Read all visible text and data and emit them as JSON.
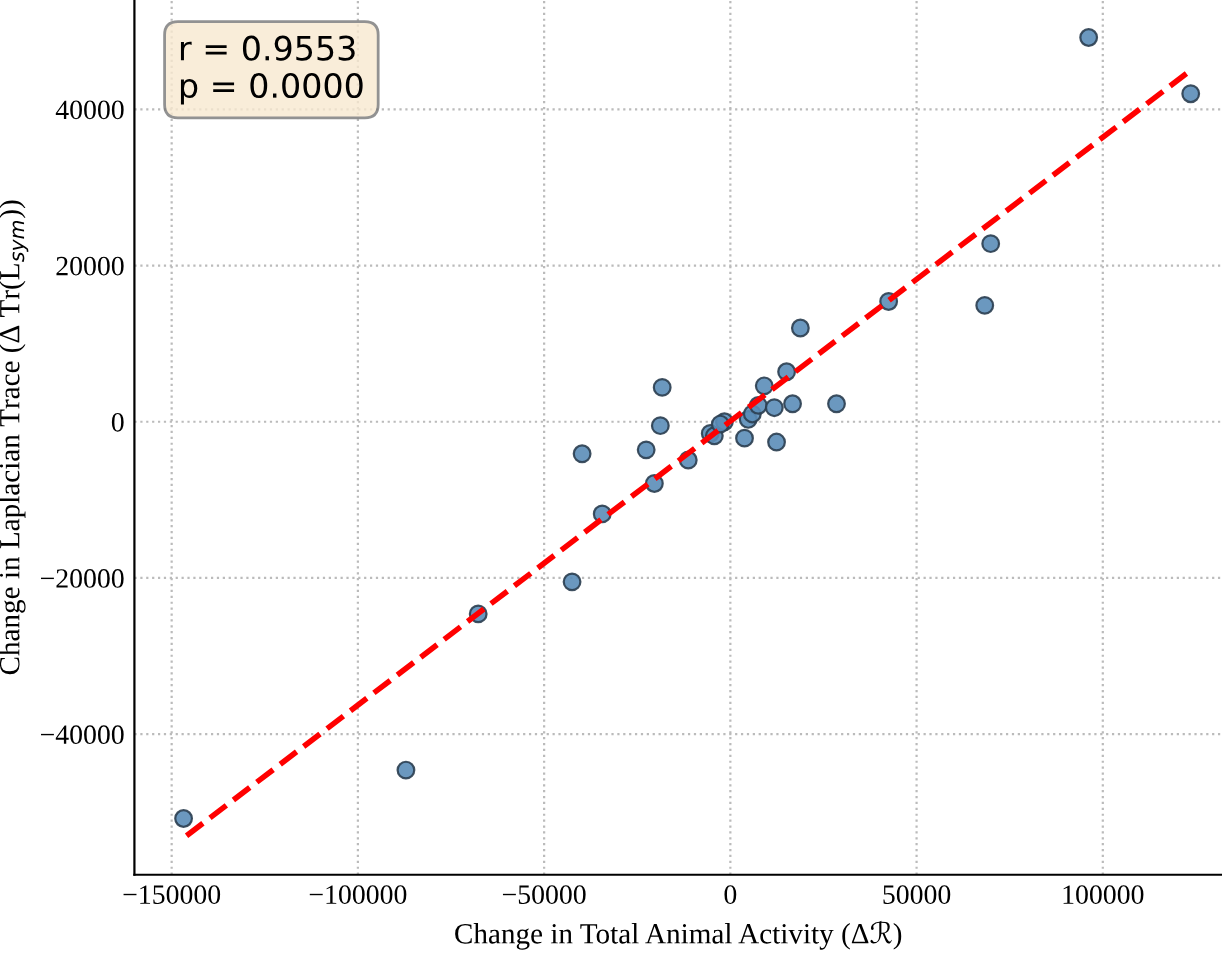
{
  "chart_data": {
    "type": "scatter",
    "xlabel": "Change in Total Animal Activity (Δℛ)",
    "ylabel": "Change in Laplacian Trace (Δ Tr(L$_{sym}$))",
    "annotations": [
      "r = 0.9553\np = 0.0000"
    ],
    "series": [
      {
        "color": "#5b8db8",
        "marker": "circle",
        "x": [
          -146800,
          -87100,
          -67700,
          -42500,
          -39800,
          -34400,
          -18300,
          -18800,
          -22600,
          -20400,
          -11300,
          -5400,
          -4300,
          -1600,
          -2700,
          3800,
          4800,
          5900,
          7500,
          9100,
          11800,
          12400,
          15100,
          16700,
          18800,
          28500,
          42500,
          68300,
          69900,
          96200,
          123600
        ],
        "values": [
          -50800,
          -44600,
          -24600,
          -20500,
          -4100,
          -11800,
          4400,
          -500,
          -3600,
          -7900,
          -4900,
          -1500,
          -1800,
          0,
          -300,
          -2100,
          300,
          1000,
          2100,
          4600,
          1800,
          -2600,
          6400,
          2300,
          12000,
          2300,
          15400,
          14900,
          22800,
          49200,
          42000
        ]
      },
      {
        "type": "line",
        "color": "#ff0000",
        "line_style": "dashed",
        "marker": "none",
        "x": [
          -146000,
          123600
        ],
        "values": [
          -53000,
          45000
        ]
      }
    ],
    "xlim": [
      -160000,
      132000
    ],
    "ylim": [
      -58000,
      54000
    ],
    "xticks": [
      {
        "value": -150000,
        "label": "−150000"
      },
      {
        "value": -100000,
        "label": "−100000"
      },
      {
        "value": -50000,
        "label": "−50000"
      },
      0,
      50000,
      100000
    ],
    "yticks": [
      {
        "value": -40000,
        "label": "−40000"
      },
      {
        "value": -20000,
        "label": "−20000"
      },
      0,
      20000,
      40000
    ],
    "grid": true,
    "legend": false
  }
}
